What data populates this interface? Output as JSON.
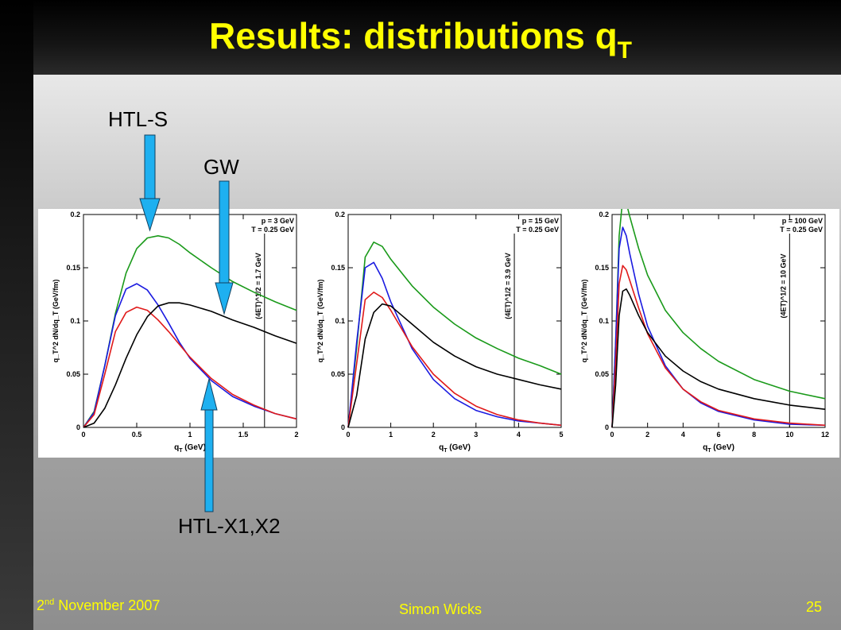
{
  "slide": {
    "title_main": "Results: distributions q",
    "title_sub": "T",
    "annotations": {
      "htl_s": "HTL-S",
      "gw": "GW",
      "htl_x": "HTL-X1,X2"
    },
    "footer": {
      "date_day": "2",
      "date_sup": "nd",
      "date_rest": " November 2007",
      "author": "Simon Wicks",
      "page": "25"
    },
    "arrow_color": "#1eb0f0"
  },
  "chart_data": [
    {
      "type": "line",
      "xlabel_main": "q",
      "xlabel_sub": "T",
      "xlabel_unit": " (GeV)",
      "ylabel": "q_T^2 dN/dq_T (GeV/fm)",
      "xlim": [
        0,
        2
      ],
      "ylim": [
        0,
        0.2
      ],
      "xticks": [
        "0",
        "0.5",
        "1",
        "1.5",
        "2"
      ],
      "xtick_values": [
        0,
        0.5,
        1,
        1.5,
        2
      ],
      "yticks": [
        "0",
        "0.05",
        "0.1",
        "0.15",
        "0.2"
      ],
      "ytick_values": [
        0,
        0.05,
        0.1,
        0.15,
        0.2
      ],
      "legend": [
        "p = 3 GeV",
        "T = 0.25 GeV"
      ],
      "vline": {
        "x": 1.7,
        "label": "(4ET)^1/2 = 1.7 GeV"
      },
      "series": [
        {
          "color": "#1a9a1a",
          "x": [
            0,
            0.1,
            0.2,
            0.3,
            0.4,
            0.5,
            0.6,
            0.7,
            0.8,
            0.9,
            1.0,
            1.2,
            1.4,
            1.6,
            1.8,
            2.0
          ],
          "y": [
            0,
            0.015,
            0.058,
            0.107,
            0.145,
            0.168,
            0.178,
            0.18,
            0.178,
            0.172,
            0.164,
            0.15,
            0.137,
            0.127,
            0.118,
            0.11
          ]
        },
        {
          "color": "#1a1ae0",
          "x": [
            0,
            0.1,
            0.2,
            0.3,
            0.4,
            0.5,
            0.6,
            0.7,
            0.8,
            0.9,
            1.0,
            1.2,
            1.4,
            1.6,
            1.8,
            2.0
          ],
          "y": [
            0,
            0.014,
            0.058,
            0.105,
            0.13,
            0.135,
            0.129,
            0.115,
            0.098,
            0.08,
            0.065,
            0.044,
            0.029,
            0.02,
            0.013,
            0.008
          ]
        },
        {
          "color": "#e01a1a",
          "x": [
            0,
            0.1,
            0.2,
            0.3,
            0.4,
            0.5,
            0.6,
            0.7,
            0.8,
            0.9,
            1.0,
            1.2,
            1.4,
            1.6,
            1.8,
            2.0
          ],
          "y": [
            0,
            0.012,
            0.05,
            0.09,
            0.108,
            0.113,
            0.11,
            0.101,
            0.09,
            0.078,
            0.066,
            0.046,
            0.031,
            0.021,
            0.013,
            0.008
          ]
        },
        {
          "color": "#000000",
          "x": [
            0,
            0.1,
            0.2,
            0.3,
            0.4,
            0.5,
            0.6,
            0.7,
            0.8,
            0.9,
            1.0,
            1.2,
            1.4,
            1.6,
            1.8,
            2.0
          ],
          "y": [
            0,
            0.004,
            0.018,
            0.04,
            0.065,
            0.087,
            0.104,
            0.114,
            0.117,
            0.117,
            0.115,
            0.109,
            0.101,
            0.094,
            0.086,
            0.079
          ]
        }
      ]
    },
    {
      "type": "line",
      "xlabel_main": "q",
      "xlabel_sub": "T",
      "xlabel_unit": " (GeV)",
      "ylabel": "q_T^2 dN/dq_T (GeV/fm)",
      "xlim": [
        0,
        5
      ],
      "ylim": [
        0,
        0.2
      ],
      "xticks": [
        "0",
        "1",
        "2",
        "3",
        "4",
        "5"
      ],
      "xtick_values": [
        0,
        1,
        2,
        3,
        4,
        5
      ],
      "yticks": [
        "0",
        "0.05",
        "0.1",
        "0.15",
        "0.2"
      ],
      "ytick_values": [
        0,
        0.05,
        0.1,
        0.15,
        0.2
      ],
      "legend": [
        "p = 15 GeV",
        "T = 0.25 GeV"
      ],
      "vline": {
        "x": 3.9,
        "label": "(4ET)^1/2 = 3.9 GeV"
      },
      "series": [
        {
          "color": "#1a9a1a",
          "x": [
            0,
            0.2,
            0.4,
            0.6,
            0.8,
            1.0,
            1.5,
            2.0,
            2.5,
            3.0,
            3.5,
            4.0,
            4.5,
            5.0
          ],
          "y": [
            0,
            0.075,
            0.16,
            0.174,
            0.17,
            0.158,
            0.133,
            0.113,
            0.097,
            0.084,
            0.074,
            0.065,
            0.058,
            0.05
          ]
        },
        {
          "color": "#1a1ae0",
          "x": [
            0,
            0.2,
            0.4,
            0.6,
            0.8,
            1.0,
            1.5,
            2.0,
            2.5,
            3.0,
            3.5,
            4.0,
            4.5,
            5.0
          ],
          "y": [
            0,
            0.08,
            0.15,
            0.155,
            0.14,
            0.118,
            0.074,
            0.045,
            0.027,
            0.016,
            0.01,
            0.006,
            0.004,
            0.002
          ]
        },
        {
          "color": "#e01a1a",
          "x": [
            0,
            0.2,
            0.4,
            0.6,
            0.8,
            1.0,
            1.5,
            2.0,
            2.5,
            3.0,
            3.5,
            4.0,
            4.5,
            5.0
          ],
          "y": [
            0,
            0.06,
            0.12,
            0.127,
            0.122,
            0.11,
            0.076,
            0.05,
            0.032,
            0.02,
            0.012,
            0.007,
            0.004,
            0.002
          ]
        },
        {
          "color": "#000000",
          "x": [
            0,
            0.2,
            0.4,
            0.6,
            0.8,
            1.0,
            1.5,
            2.0,
            2.5,
            3.0,
            3.5,
            4.0,
            4.5,
            5.0
          ],
          "y": [
            0,
            0.03,
            0.083,
            0.108,
            0.116,
            0.114,
            0.097,
            0.08,
            0.067,
            0.057,
            0.05,
            0.045,
            0.04,
            0.036
          ]
        }
      ]
    },
    {
      "type": "line",
      "xlabel_main": "q",
      "xlabel_sub": "T",
      "xlabel_unit": " (GeV)",
      "ylabel": "q_T^2 dN/dq_T (GeV/fm)",
      "xlim": [
        0,
        12
      ],
      "ylim": [
        0,
        0.2
      ],
      "xticks": [
        "0",
        "2",
        "4",
        "6",
        "8",
        "10",
        "12"
      ],
      "xtick_values": [
        0,
        2,
        4,
        6,
        8,
        10,
        12
      ],
      "yticks": [
        "0",
        "0.05",
        "0.1",
        "0.15",
        "0.2"
      ],
      "ytick_values": [
        0,
        0.05,
        0.1,
        0.15,
        0.2
      ],
      "legend": [
        "p = 100 GeV",
        "T = 0.25 GeV"
      ],
      "vline": {
        "x": 10,
        "label": "(4ET)^1/2 = 10 GeV"
      },
      "series": [
        {
          "color": "#1a9a1a",
          "x": [
            0,
            0.2,
            0.4,
            0.6,
            0.8,
            1.0,
            1.5,
            2,
            3,
            4,
            5,
            6,
            8,
            10,
            12
          ],
          "y": [
            0,
            0.08,
            0.18,
            0.215,
            0.211,
            0.198,
            0.168,
            0.143,
            0.11,
            0.089,
            0.074,
            0.062,
            0.045,
            0.034,
            0.027
          ]
        },
        {
          "color": "#1a1ae0",
          "x": [
            0,
            0.2,
            0.4,
            0.6,
            0.8,
            1.0,
            1.5,
            2,
            3,
            4,
            5,
            6,
            8,
            10,
            12
          ],
          "y": [
            0,
            0.08,
            0.168,
            0.188,
            0.18,
            0.163,
            0.125,
            0.095,
            0.058,
            0.036,
            0.023,
            0.015,
            0.007,
            0.003,
            0.002
          ]
        },
        {
          "color": "#e01a1a",
          "x": [
            0,
            0.2,
            0.4,
            0.6,
            0.8,
            1.0,
            1.5,
            2,
            3,
            4,
            5,
            6,
            8,
            10,
            12
          ],
          "y": [
            0,
            0.06,
            0.135,
            0.152,
            0.148,
            0.138,
            0.112,
            0.088,
            0.056,
            0.036,
            0.024,
            0.016,
            0.008,
            0.004,
            0.002
          ]
        },
        {
          "color": "#000000",
          "x": [
            0,
            0.2,
            0.4,
            0.6,
            0.8,
            1.0,
            1.5,
            2,
            3,
            4,
            5,
            6,
            8,
            10,
            12
          ],
          "y": [
            0,
            0.04,
            0.105,
            0.128,
            0.13,
            0.124,
            0.105,
            0.089,
            0.067,
            0.053,
            0.043,
            0.036,
            0.027,
            0.021,
            0.017
          ]
        }
      ]
    }
  ]
}
